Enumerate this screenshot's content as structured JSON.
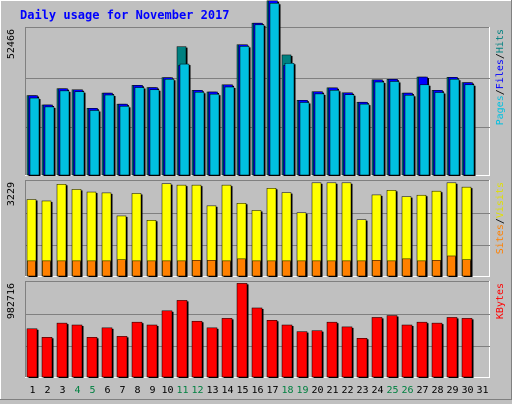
{
  "chart_data": {
    "type": "bar",
    "title": "Daily usage for November 2017",
    "categories": [
      "1",
      "2",
      "3",
      "4",
      "5",
      "6",
      "7",
      "8",
      "9",
      "10",
      "11",
      "12",
      "13",
      "14",
      "15",
      "16",
      "17",
      "18",
      "19",
      "20",
      "21",
      "22",
      "23",
      "24",
      "25",
      "26",
      "27",
      "28",
      "29",
      "30",
      "31"
    ],
    "weekend_days": [
      "4",
      "5",
      "11",
      "12",
      "18",
      "19",
      "25",
      "26"
    ],
    "panels": [
      {
        "id": "pages-files-hits",
        "ytick_label": "52466",
        "ymax": 52466,
        "ylabel_parts": [
          {
            "text": "Pages",
            "color": "#00c0e0"
          },
          {
            "text": "/",
            "color": "#000000"
          },
          {
            "text": "Files",
            "color": "#0000ff"
          },
          {
            "text": "/",
            "color": "#000000"
          },
          {
            "text": "Hits",
            "color": "#008080"
          }
        ],
        "series": [
          {
            "name": "Hits",
            "color": "#008080",
            "values": [
              29100,
              25700,
              31600,
              31200,
              24500,
              30000,
              26000,
              32800,
              32000,
              35600,
              46800,
              31000,
              30400,
              33000,
              47500,
              55300,
              63400,
              43800,
              27400,
              30500,
              31900,
              30100,
              26700,
              34800,
              35000,
              30000,
              35800,
              31000,
              35700,
              33800,
              0
            ]
          },
          {
            "name": "Files",
            "color": "#0000ff",
            "values": [
              29100,
              25700,
              31600,
              31200,
              24500,
              30000,
              26000,
              32800,
              32000,
              35600,
              40000,
              31000,
              30400,
              33000,
              47500,
              55300,
              63400,
              40000,
              27400,
              30500,
              31900,
              30100,
              26700,
              34800,
              35000,
              30000,
              35800,
              31000,
              35700,
              33800,
              0
            ]
          },
          {
            "name": "Pages",
            "color": "#00c0e0",
            "values": [
              28200,
              25000,
              30800,
              30500,
              23700,
              29300,
              25200,
              32000,
              31200,
              35000,
              40500,
              30300,
              29600,
              32200,
              46900,
              54700,
              62500,
              40800,
              26600,
              29700,
              31000,
              29400,
              26000,
              34000,
              34200,
              29200,
              33000,
              30200,
              35000,
              33000,
              0
            ]
          }
        ]
      },
      {
        "id": "visits-sites",
        "ytick_label": "3229",
        "ymax": 3229,
        "ylabel_parts": [
          {
            "text": "Sites",
            "color": "#ff8000"
          },
          {
            "text": "/",
            "color": "#000000"
          },
          {
            "text": "Visits",
            "color": "#e0e000"
          }
        ],
        "series": [
          {
            "name": "Visits",
            "color": "#ffff00",
            "values": [
              2690,
              2640,
              3220,
              3040,
              2950,
              2920,
              2120,
              2900,
              1970,
              3240,
              3190,
              3190,
              2470,
              3190,
              2560,
              2310,
              3080,
              2930,
              2230,
              3270,
              3270,
              3270,
              1990,
              2850,
              3010,
              2790,
              2840,
              2980,
              3270,
              3120,
              0
            ]
          },
          {
            "name": "Sites",
            "color": "#ff8000",
            "values": [
              560,
              560,
              560,
              560,
              560,
              560,
              600,
              560,
              560,
              560,
              560,
              580,
              580,
              560,
              630,
              560,
              560,
              560,
              560,
              560,
              560,
              560,
              560,
              580,
              560,
              630,
              560,
              580,
              730,
              600,
              0
            ]
          }
        ]
      },
      {
        "id": "kbytes",
        "ytick_label": "982716",
        "ymax": 982716,
        "ylabel_parts": [
          {
            "text": "KBytes",
            "color": "#ff0000"
          }
        ],
        "series": [
          {
            "name": "KBytes",
            "color": "#ff0000",
            "values": [
              520000,
              430000,
              580000,
              560000,
              430000,
              530000,
              440000,
              590000,
              560000,
              710000,
              820000,
              600000,
              530000,
              630000,
              1000000,
              740000,
              610000,
              560000,
              490000,
              500000,
              590000,
              540000,
              420000,
              640000,
              660000,
              560000,
              590000,
              580000,
              640000,
              630000,
              0
            ]
          }
        ]
      }
    ],
    "grid": true,
    "legend": "right-vertical"
  }
}
